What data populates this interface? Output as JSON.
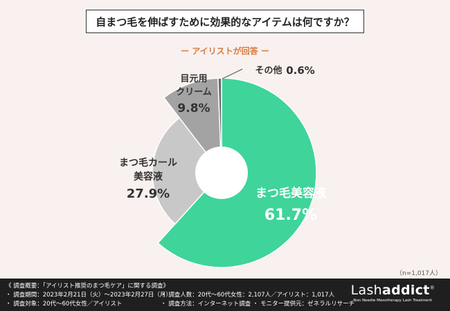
{
  "chart_data": {
    "type": "pie",
    "title": "自まつ毛を伸ばすために効果的なアイテムは何ですか？",
    "subtitle": "ー アイリストが回答 ー",
    "note": "（n=1,017人）",
    "slices": [
      {
        "label": "まつ毛美容液",
        "value": 61.7,
        "value_text": "61.7%",
        "color": "#3fd49a"
      },
      {
        "label": "まつ毛カール美容液",
        "value": 27.9,
        "value_text": "27.9%",
        "color": "#c8c8c8"
      },
      {
        "label": "目元用クリーム",
        "value": 9.8,
        "value_text": "9.8%",
        "color": "#a3a3a3"
      },
      {
        "label": "その他",
        "value": 0.6,
        "value_text": "0.6%",
        "color": "#6b6b6b"
      }
    ]
  },
  "labels": {
    "s0_line1": "まつ毛美容液",
    "s1_line1": "まつ毛カール",
    "s1_line2": "美容液",
    "s2_line1": "目元用",
    "s2_line2": "クリーム",
    "s3_line1": "その他"
  },
  "footer": {
    "heading": "《 調査概要：「アイリスト推奨のまつ毛ケア」に関する調査》",
    "line1": "・ 調査期間：2023年2月21日（火）〜2023年2月27日（月）",
    "line2": "・ 調査対象：20代〜60代女性／アイリスト",
    "line3": "・ 調査人数：20代〜60代女性：2,107人／アイリスト：1,017人",
    "line4": "・ 調査方法：インターネット調査 ・ モニター提供元：ゼネラルリサーチ"
  },
  "brand": {
    "name_light": "Lash",
    "name_bold": "addict",
    "mark": "®",
    "tagline": "Non Needle Mesotherapy Lash Treatment"
  }
}
